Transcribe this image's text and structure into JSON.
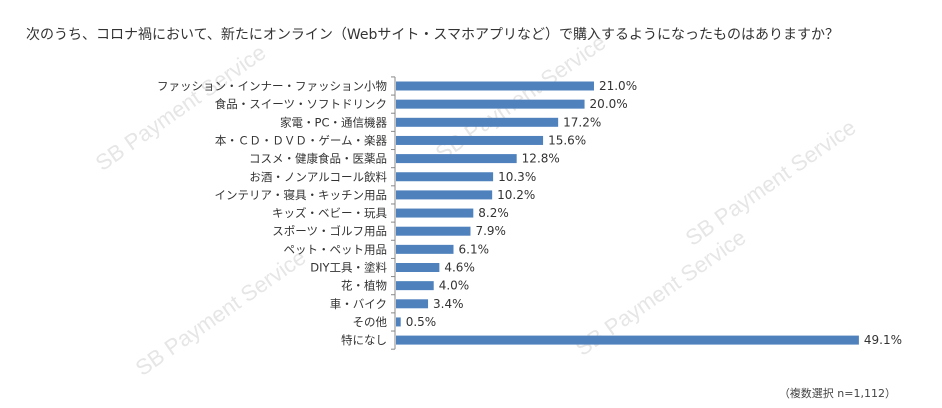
{
  "question": "次のうち、コロナ禍において、新たにオンライン（Webサイト・スマホアプリなど）で購入するようになったものはありますか？",
  "watermark": "SB Payment Service",
  "footnote": "（複数選択 n=1,112）",
  "colors": {
    "bar": "#4f81bd",
    "axis": "#888888",
    "text": "#333333"
  },
  "chart_data": {
    "type": "bar",
    "orientation": "horizontal",
    "categories": [
      "ファッション・インナー・ファッション小物",
      "食品・スイーツ・ソフトドリンク",
      "家電・PC・通信機器",
      "本・ＣＤ・ＤＶＤ・ゲーム・楽器",
      "コスメ・健康食品・医薬品",
      "お酒・ノンアルコール飲料",
      "インテリア・寝具・キッチン用品",
      "キッズ・ベビー・玩具",
      "スポーツ・ゴルフ用品",
      "ペット・ペット用品",
      "DIY工具・塗料",
      "花・植物",
      "車・バイク",
      "その他",
      "特になし"
    ],
    "values": [
      21.0,
      20.0,
      17.2,
      15.6,
      12.8,
      10.3,
      10.2,
      8.2,
      7.9,
      6.1,
      4.6,
      4.0,
      3.4,
      0.5,
      49.1
    ],
    "value_labels": [
      "21.0%",
      "20.0%",
      "17.2%",
      "15.6%",
      "12.8%",
      "10.3%",
      "10.2%",
      "8.2%",
      "7.9%",
      "6.1%",
      "4.6%",
      "4.0%",
      "3.4%",
      "0.5%",
      "49.1%"
    ],
    "value_suffix": "%",
    "xlim": [
      0,
      50
    ],
    "grid": false,
    "legend": false
  }
}
